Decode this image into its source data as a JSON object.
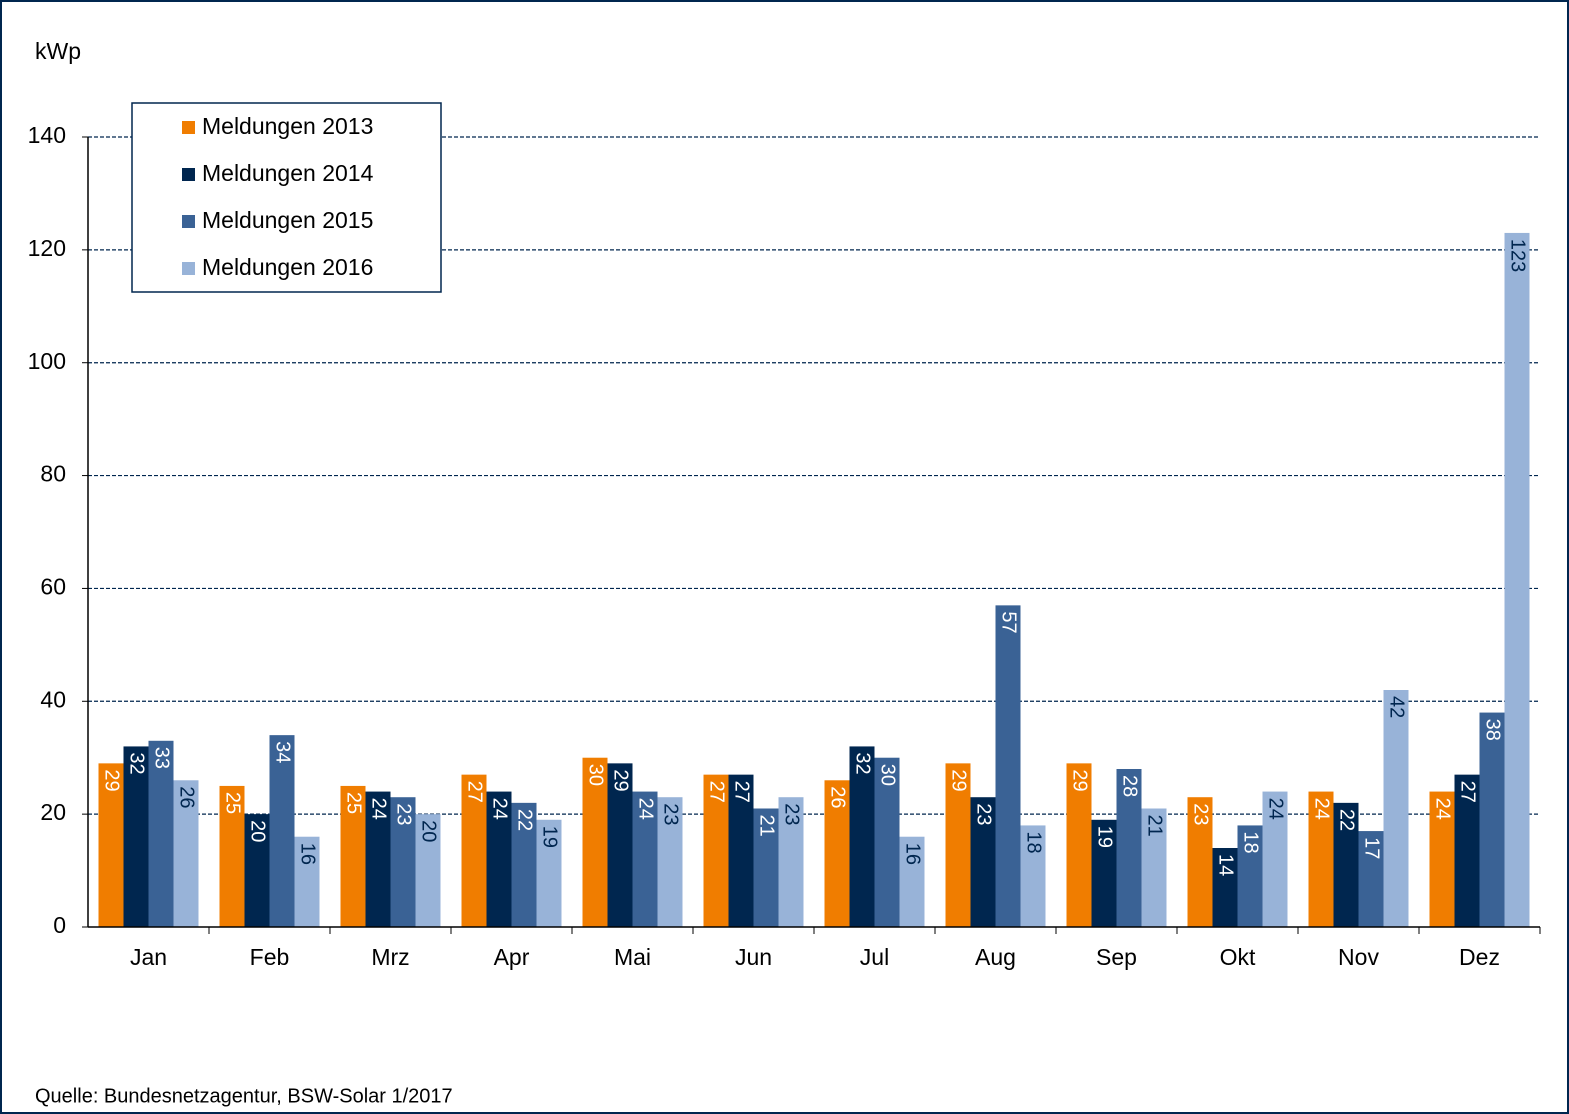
{
  "chart_data": {
    "type": "bar",
    "y_label": "kWp",
    "source": "Quelle: Bundesnetzagentur, BSW-Solar 1/2017",
    "categories": [
      "Jan",
      "Feb",
      "Mrz",
      "Apr",
      "Mai",
      "Jun",
      "Jul",
      "Aug",
      "Sep",
      "Okt",
      "Nov",
      "Dez"
    ],
    "series": [
      {
        "name": "Meldungen 2013",
        "color": "#f07d00",
        "values": [
          29,
          25,
          25,
          27,
          30,
          27,
          26,
          29,
          29,
          23,
          24,
          24
        ]
      },
      {
        "name": "Meldungen 2014",
        "color": "#00264f",
        "values": [
          32,
          20,
          24,
          24,
          29,
          27,
          32,
          23,
          19,
          14,
          22,
          27
        ]
      },
      {
        "name": "Meldungen 2015",
        "color": "#3a6295",
        "values": [
          33,
          34,
          23,
          22,
          24,
          21,
          30,
          57,
          28,
          18,
          17,
          38
        ]
      },
      {
        "name": "Meldungen 2016",
        "color": "#98b3d8",
        "values": [
          26,
          16,
          20,
          19,
          23,
          23,
          16,
          18,
          21,
          24,
          42,
          123
        ]
      }
    ],
    "ylim": [
      0,
      140
    ],
    "yticks": [
      0,
      20,
      40,
      60,
      80,
      100,
      120,
      140
    ],
    "grid": true,
    "legend": "top-left"
  }
}
